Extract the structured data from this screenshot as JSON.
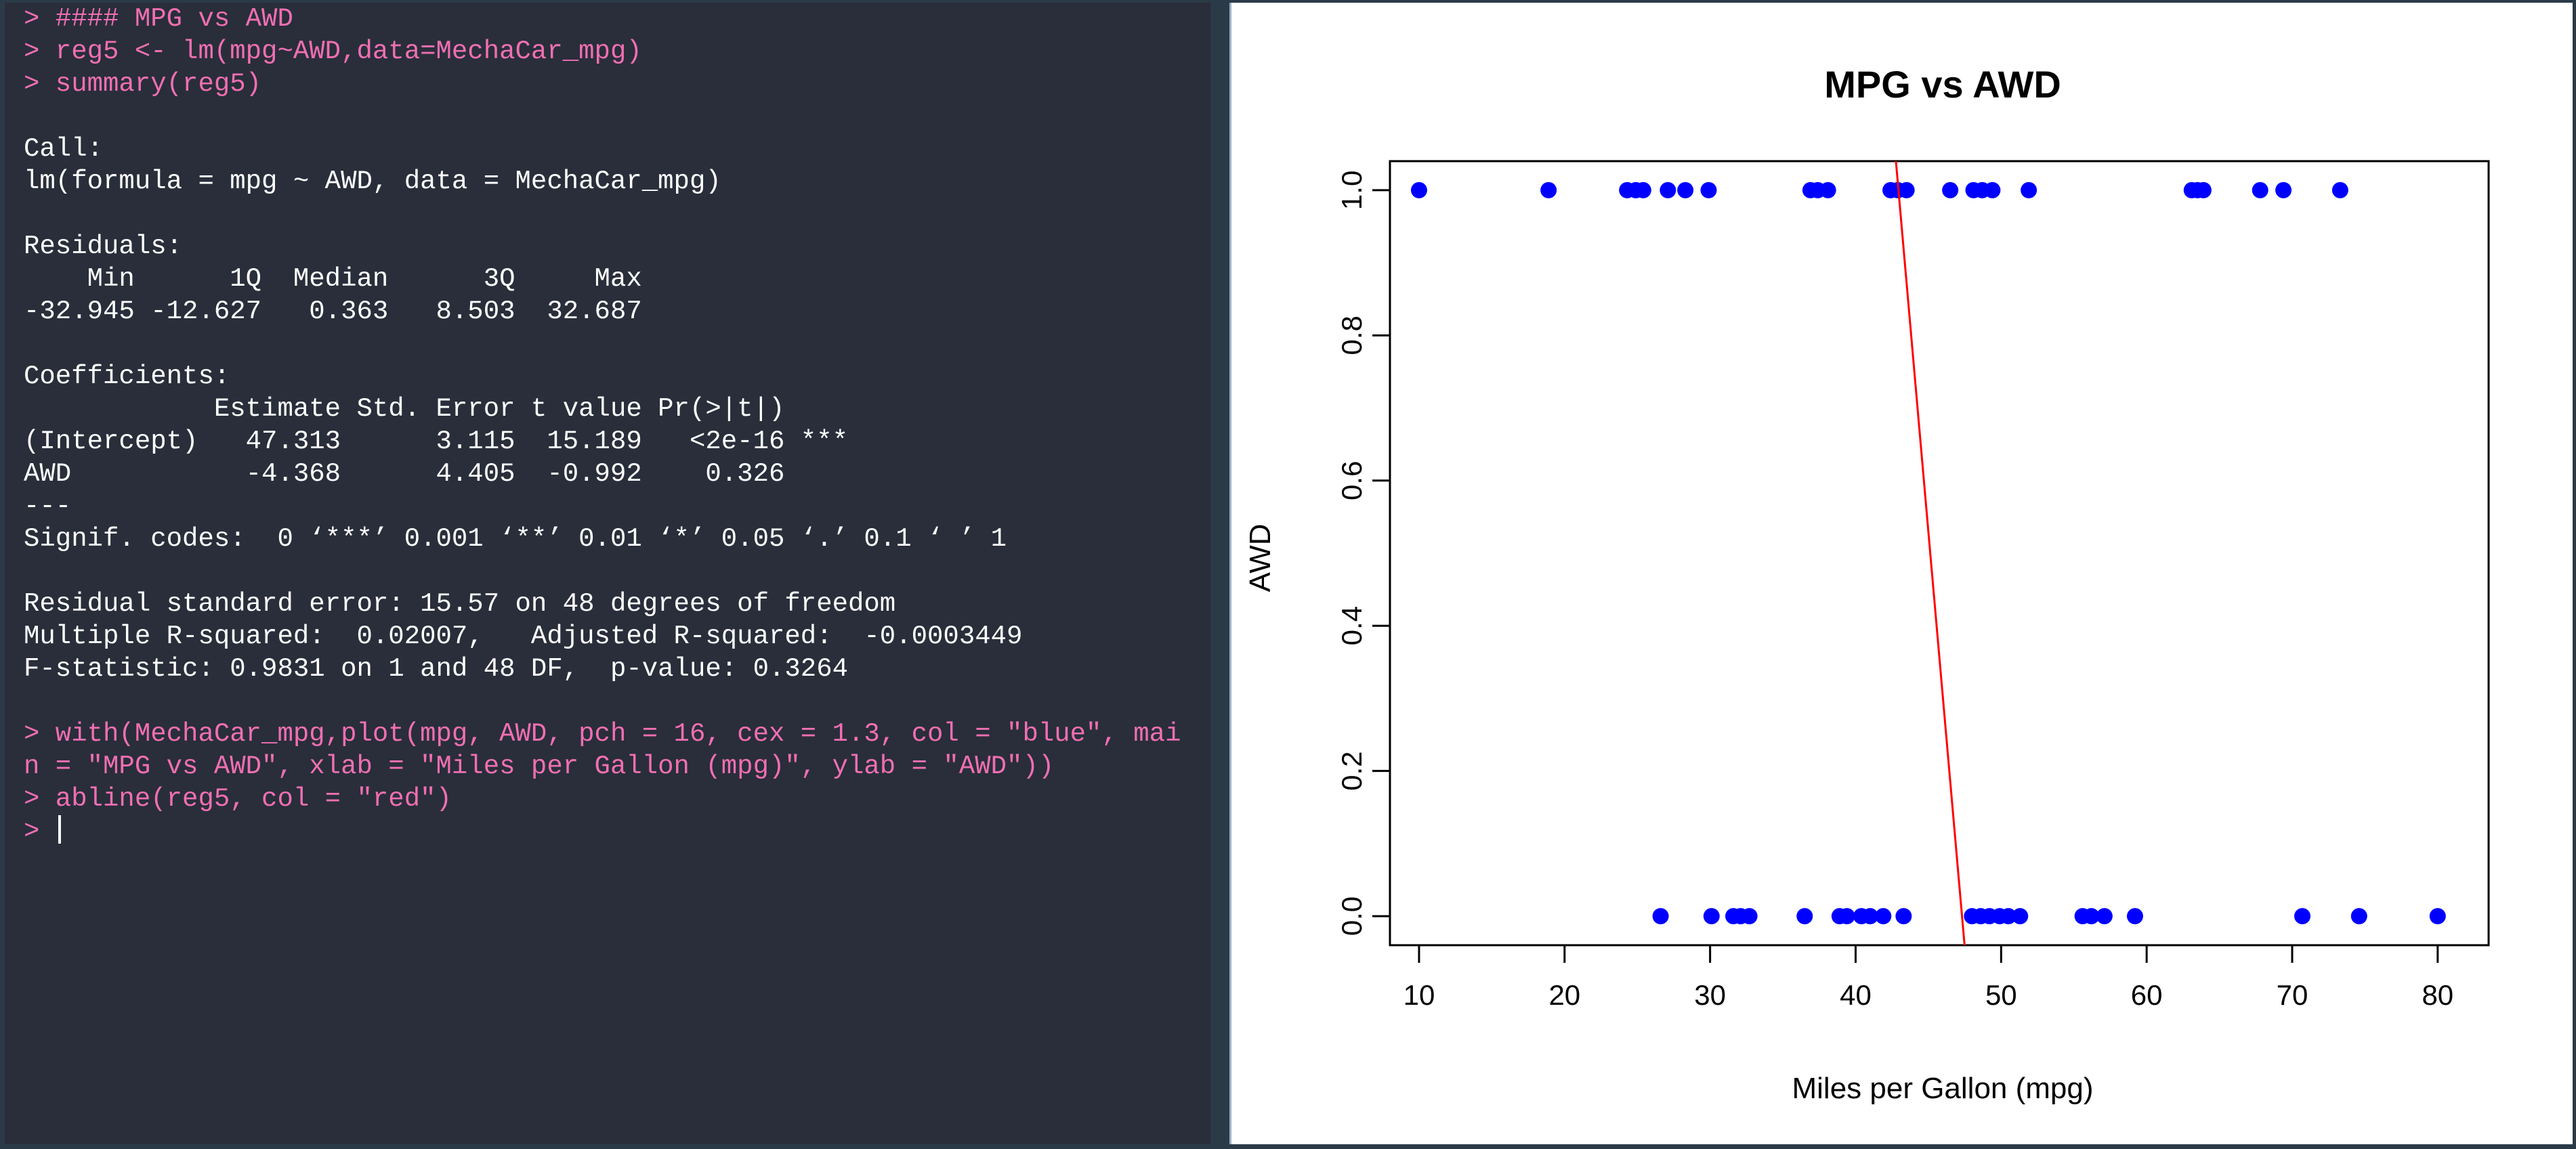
{
  "console": {
    "lines": [
      {
        "text": "> #### MPG vs AWD",
        "type": "cmd"
      },
      {
        "text": "> reg5 <- lm(mpg~AWD,data=MechaCar_mpg)",
        "type": "cmd"
      },
      {
        "text": "> summary(reg5)",
        "type": "cmd"
      },
      {
        "text": "",
        "type": "out"
      },
      {
        "text": "Call:",
        "type": "out"
      },
      {
        "text": "lm(formula = mpg ~ AWD, data = MechaCar_mpg)",
        "type": "out"
      },
      {
        "text": "",
        "type": "out"
      },
      {
        "text": "Residuals:",
        "type": "out"
      },
      {
        "text": "    Min      1Q  Median      3Q     Max ",
        "type": "out"
      },
      {
        "text": "-32.945 -12.627   0.363   8.503  32.687 ",
        "type": "out"
      },
      {
        "text": "",
        "type": "out"
      },
      {
        "text": "Coefficients:",
        "type": "out"
      },
      {
        "text": "            Estimate Std. Error t value Pr(>|t|)    ",
        "type": "out"
      },
      {
        "text": "(Intercept)   47.313      3.115  15.189   <2e-16 ***",
        "type": "out"
      },
      {
        "text": "AWD           -4.368      4.405  -0.992    0.326    ",
        "type": "out"
      },
      {
        "text": "---",
        "type": "out"
      },
      {
        "text": "Signif. codes:  0 ‘***’ 0.001 ‘**’ 0.01 ‘*’ 0.05 ‘.’ 0.1 ‘ ’ 1",
        "type": "out"
      },
      {
        "text": "",
        "type": "out"
      },
      {
        "text": "Residual standard error: 15.57 on 48 degrees of freedom",
        "type": "out"
      },
      {
        "text": "Multiple R-squared:  0.02007,\tAdjusted R-squared:  -0.0003449 ",
        "type": "out"
      },
      {
        "text": "F-statistic: 0.9831 on 1 and 48 DF,  p-value: 0.3264",
        "type": "out"
      },
      {
        "text": "",
        "type": "out"
      },
      {
        "text": "> with(MechaCar_mpg,plot(mpg, AWD, pch = 16, cex = 1.3, col = \"blue\", mai",
        "type": "cmd"
      },
      {
        "text": "n = \"MPG vs AWD\", xlab = \"Miles per Gallon (mpg)\", ylab = \"AWD\"))",
        "type": "cmd"
      },
      {
        "text": "> abline(reg5, col = \"red\")",
        "type": "cmd"
      },
      {
        "text": "> ",
        "type": "cmd",
        "cursor": true
      }
    ]
  },
  "chart_data": {
    "type": "scatter",
    "title": "MPG vs AWD",
    "xlabel": "Miles per Gallon (mpg)",
    "ylabel": "AWD",
    "xlim": [
      8,
      83.5
    ],
    "ylim": [
      -0.04,
      1.04
    ],
    "x_ticks": [
      10,
      20,
      30,
      40,
      50,
      60,
      70,
      80
    ],
    "y_ticks": [
      0.0,
      0.2,
      0.4,
      0.6,
      0.8,
      1.0
    ],
    "x_tick_labels": [
      "10",
      "20",
      "30",
      "40",
      "50",
      "60",
      "70",
      "80"
    ],
    "y_tick_labels": [
      "0.0",
      "0.2",
      "0.4",
      "0.6",
      "0.8",
      "1.0"
    ],
    "point_color": "#0000ff",
    "grid": false,
    "points": [
      {
        "x": 10.0,
        "y": 1
      },
      {
        "x": 18.9,
        "y": 1
      },
      {
        "x": 24.3,
        "y": 1
      },
      {
        "x": 24.9,
        "y": 1
      },
      {
        "x": 25.4,
        "y": 1
      },
      {
        "x": 27.1,
        "y": 1
      },
      {
        "x": 28.3,
        "y": 1
      },
      {
        "x": 29.9,
        "y": 1
      },
      {
        "x": 36.9,
        "y": 1
      },
      {
        "x": 37.4,
        "y": 1
      },
      {
        "x": 38.1,
        "y": 1
      },
      {
        "x": 42.4,
        "y": 1
      },
      {
        "x": 42.9,
        "y": 1
      },
      {
        "x": 43.5,
        "y": 1
      },
      {
        "x": 46.5,
        "y": 1
      },
      {
        "x": 48.1,
        "y": 1
      },
      {
        "x": 48.7,
        "y": 1
      },
      {
        "x": 49.4,
        "y": 1
      },
      {
        "x": 51.9,
        "y": 1
      },
      {
        "x": 63.1,
        "y": 1
      },
      {
        "x": 63.5,
        "y": 1
      },
      {
        "x": 63.9,
        "y": 1
      },
      {
        "x": 67.8,
        "y": 1
      },
      {
        "x": 69.4,
        "y": 1
      },
      {
        "x": 73.3,
        "y": 1
      },
      {
        "x": 26.6,
        "y": 0
      },
      {
        "x": 30.1,
        "y": 0
      },
      {
        "x": 31.6,
        "y": 0
      },
      {
        "x": 32.1,
        "y": 0
      },
      {
        "x": 32.7,
        "y": 0
      },
      {
        "x": 36.5,
        "y": 0
      },
      {
        "x": 38.9,
        "y": 0
      },
      {
        "x": 39.4,
        "y": 0
      },
      {
        "x": 40.4,
        "y": 0
      },
      {
        "x": 41.0,
        "y": 0
      },
      {
        "x": 41.9,
        "y": 0
      },
      {
        "x": 43.3,
        "y": 0
      },
      {
        "x": 48.0,
        "y": 0
      },
      {
        "x": 48.6,
        "y": 0
      },
      {
        "x": 49.2,
        "y": 0
      },
      {
        "x": 49.9,
        "y": 0
      },
      {
        "x": 50.5,
        "y": 0
      },
      {
        "x": 51.3,
        "y": 0
      },
      {
        "x": 55.6,
        "y": 0
      },
      {
        "x": 56.2,
        "y": 0
      },
      {
        "x": 57.1,
        "y": 0
      },
      {
        "x": 59.2,
        "y": 0
      },
      {
        "x": 70.7,
        "y": 0
      },
      {
        "x": 74.6,
        "y": 0
      },
      {
        "x": 80.0,
        "y": 0
      }
    ],
    "regression_line": {
      "color": "#ff0000",
      "intercept": 47.313,
      "slope": -4.368,
      "model": "mpg = intercept + slope * AWD"
    }
  }
}
